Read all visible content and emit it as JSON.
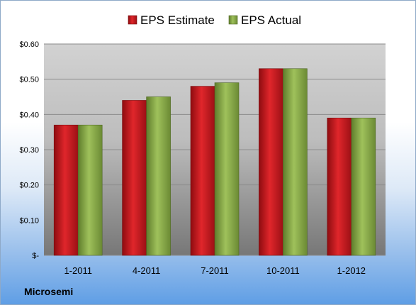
{
  "company": "Microsemi",
  "chart_data": {
    "type": "bar",
    "categories": [
      "1-2011",
      "4-2011",
      "7-2011",
      "10-2011",
      "1-2012"
    ],
    "series": [
      {
        "name": "EPS Estimate",
        "values": [
          0.37,
          0.44,
          0.48,
          0.53,
          0.39
        ],
        "color": "#c0151b"
      },
      {
        "name": "EPS Actual",
        "values": [
          0.37,
          0.45,
          0.49,
          0.53,
          0.39
        ],
        "color": "#8aac4a"
      }
    ],
    "yticks": [
      "$-",
      "$0.10",
      "$0.20",
      "$0.30",
      "$0.40",
      "$0.50",
      "$0.60"
    ],
    "ylim": [
      0,
      0.6
    ],
    "grid": true,
    "legend": "top-center"
  }
}
